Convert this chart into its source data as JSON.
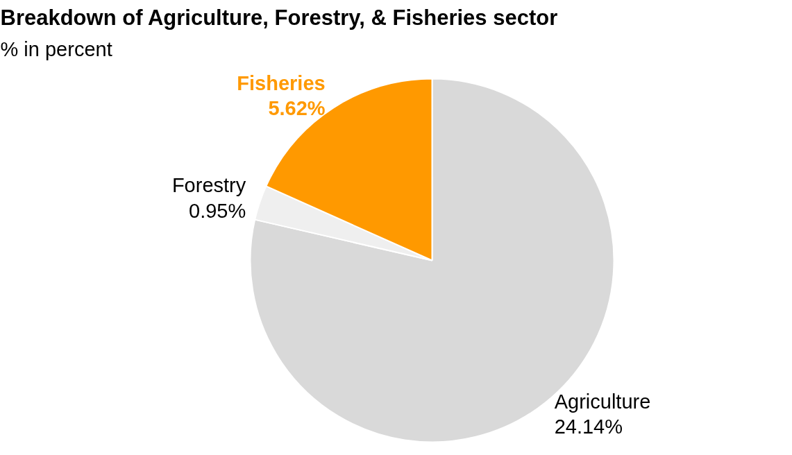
{
  "chart_data": {
    "type": "pie",
    "title": "Breakdown of Agriculture, Forestry, & Fisheries sector",
    "subtitle": "% in percent",
    "categories": [
      "Agriculture",
      "Forestry",
      "Fisheries"
    ],
    "values": [
      24.14,
      0.95,
      5.62
    ],
    "value_labels": [
      "24.14%",
      "0.95%",
      "5.62%"
    ],
    "colors": [
      "#d9d9d9",
      "#efefef",
      "#ff9900"
    ]
  }
}
